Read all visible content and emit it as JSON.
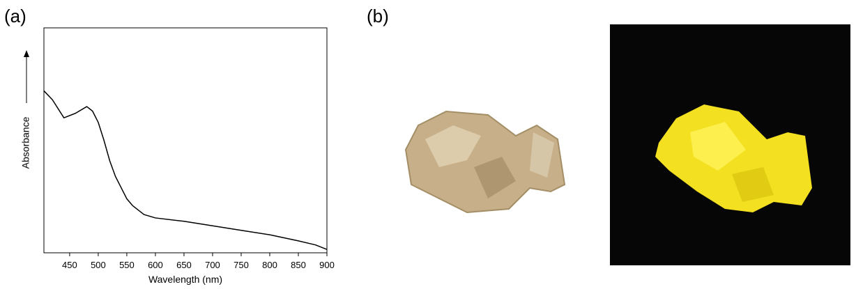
{
  "panels": {
    "a": "(a)",
    "b": "(b)"
  },
  "chart_data": {
    "type": "line",
    "xlabel": "Wavelength (nm)",
    "ylabel": "Absorbance",
    "x": [
      405,
      420,
      440,
      460,
      480,
      490,
      500,
      510,
      520,
      530,
      540,
      550,
      560,
      580,
      600,
      650,
      700,
      750,
      800,
      850,
      880,
      900
    ],
    "values": [
      0.72,
      0.68,
      0.6,
      0.62,
      0.65,
      0.63,
      0.58,
      0.5,
      0.41,
      0.34,
      0.29,
      0.24,
      0.21,
      0.17,
      0.155,
      0.14,
      0.12,
      0.1,
      0.08,
      0.053,
      0.035,
      0.015
    ],
    "color": "#000000",
    "xlim": [
      405,
      900
    ],
    "ylim": [
      0,
      1
    ],
    "xticks": [
      450,
      500,
      550,
      600,
      650,
      700,
      750,
      800,
      850,
      900
    ]
  }
}
